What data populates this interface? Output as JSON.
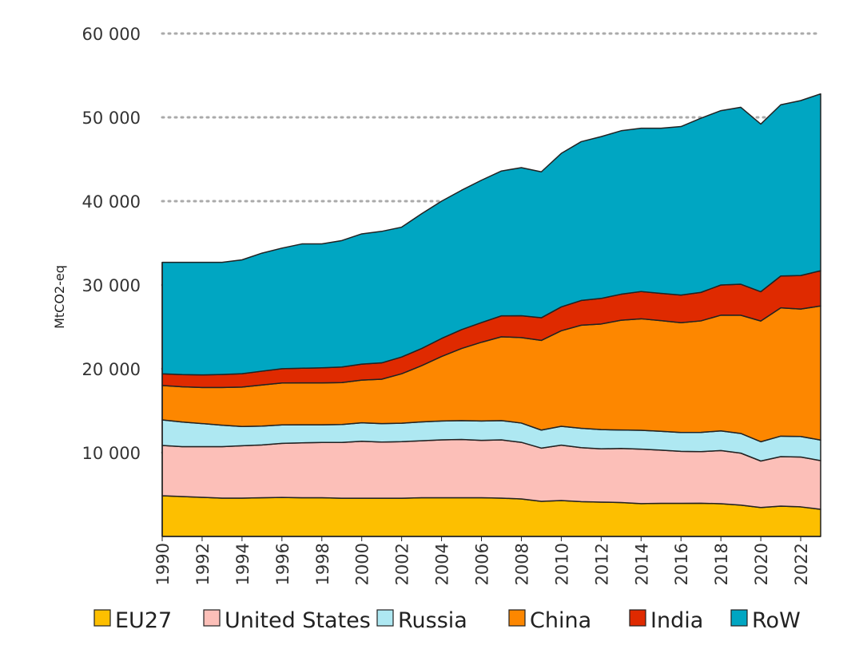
{
  "chart_data": {
    "type": "area",
    "stacked": true,
    "title": "",
    "xlabel": "",
    "ylabel": "MtCO2-eq",
    "ylim": [
      0,
      60000
    ],
    "yticks": [
      10000,
      20000,
      30000,
      40000,
      50000,
      60000
    ],
    "ytick_labels": [
      "10 000",
      "20 000",
      "30 000",
      "40 000",
      "50 000",
      "60 000"
    ],
    "xlim": [
      1990,
      2023
    ],
    "xtick_labels": [
      "1990",
      "1992",
      "1994",
      "1996",
      "1998",
      "2000",
      "2002",
      "2004",
      "2006",
      "2008",
      "2010",
      "2012",
      "2014",
      "2016",
      "2018",
      "2020",
      "2022"
    ],
    "grid": "horizontal dotted",
    "legend": "bottom",
    "x": [
      1990,
      1991,
      1992,
      1993,
      1994,
      1995,
      1996,
      1997,
      1998,
      1999,
      2000,
      2001,
      2002,
      2003,
      2004,
      2005,
      2006,
      2007,
      2008,
      2009,
      2010,
      2011,
      2012,
      2013,
      2014,
      2015,
      2016,
      2017,
      2018,
      2019,
      2020,
      2021,
      2022,
      2023
    ],
    "series": [
      {
        "name": "EU27",
        "color": "#fdbf00",
        "values": [
          4860,
          4760,
          4670,
          4570,
          4570,
          4620,
          4660,
          4620,
          4620,
          4560,
          4560,
          4560,
          4560,
          4620,
          4620,
          4620,
          4620,
          4570,
          4480,
          4190,
          4290,
          4150,
          4100,
          4050,
          3920,
          3950,
          3950,
          3970,
          3900,
          3740,
          3450,
          3620,
          3530,
          3240
        ]
      },
      {
        "name": "United States",
        "color": "#fcbfb8",
        "values": [
          6000,
          5950,
          6050,
          6150,
          6250,
          6300,
          6450,
          6550,
          6600,
          6650,
          6800,
          6700,
          6750,
          6800,
          6900,
          6950,
          6850,
          6950,
          6750,
          6350,
          6600,
          6450,
          6350,
          6450,
          6500,
          6350,
          6200,
          6150,
          6350,
          6200,
          5550,
          5900,
          5950,
          5810
        ]
      },
      {
        "name": "Russia",
        "color": "#aee8f2",
        "values": [
          3050,
          2950,
          2750,
          2550,
          2300,
          2250,
          2200,
          2150,
          2100,
          2150,
          2200,
          2200,
          2200,
          2250,
          2250,
          2250,
          2300,
          2300,
          2300,
          2150,
          2250,
          2300,
          2300,
          2200,
          2250,
          2250,
          2250,
          2300,
          2350,
          2350,
          2300,
          2450,
          2450,
          2450
        ]
      },
      {
        "name": "China",
        "color": "#fd8700",
        "values": [
          4100,
          4200,
          4300,
          4500,
          4700,
          4900,
          5000,
          5000,
          5000,
          5000,
          5100,
          5300,
          5900,
          6700,
          7700,
          8600,
          9400,
          10000,
          10200,
          10700,
          11400,
          12300,
          12600,
          13100,
          13300,
          13200,
          13100,
          13300,
          13800,
          14100,
          14400,
          15300,
          15200,
          16000
        ]
      },
      {
        "name": "India",
        "color": "#df2a00",
        "values": [
          1400,
          1450,
          1500,
          1550,
          1600,
          1650,
          1700,
          1750,
          1800,
          1850,
          1900,
          1950,
          2000,
          2050,
          2150,
          2250,
          2350,
          2500,
          2600,
          2700,
          2850,
          2950,
          3050,
          3100,
          3250,
          3250,
          3300,
          3400,
          3600,
          3700,
          3500,
          3800,
          4000,
          4200
        ]
      },
      {
        "name": "RoW",
        "color": "#00a6c2",
        "values": [
          13290,
          13390,
          13430,
          13380,
          13580,
          14080,
          14390,
          14830,
          14780,
          15090,
          15540,
          15690,
          15490,
          16080,
          16380,
          16630,
          16980,
          17280,
          17670,
          17410,
          18310,
          18950,
          19300,
          19500,
          19480,
          19700,
          20100,
          20780,
          20800,
          21110,
          20000,
          20430,
          20870,
          21100
        ]
      }
    ]
  }
}
